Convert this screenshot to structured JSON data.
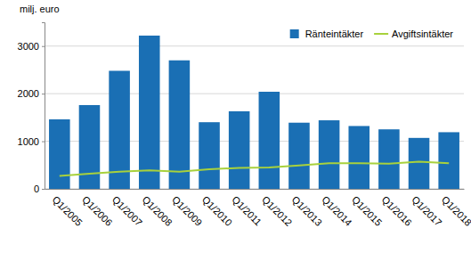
{
  "chart_data": {
    "type": "bar",
    "y_label": "milj. euro",
    "categories": [
      "Q1/2005",
      "Q1/2006",
      "Q1/2007",
      "Q1/2008",
      "Q1/2009",
      "Q1/2010",
      "Q1/2011",
      "Q1/2012",
      "Q1/2013",
      "Q1/2014",
      "Q1/2015",
      "Q1/2016",
      "Q1/2017",
      "Q1/2018"
    ],
    "series": [
      {
        "name": "Ränteintäkter",
        "type": "bar",
        "color": "#1a6fb4",
        "values": [
          1460,
          1760,
          2480,
          3220,
          2700,
          1400,
          1630,
          2040,
          1390,
          1440,
          1320,
          1250,
          1070,
          1190
        ]
      },
      {
        "name": "Avgiftsintäkter",
        "type": "line",
        "color": "#a8d13c",
        "values": [
          270,
          320,
          360,
          390,
          360,
          410,
          440,
          450,
          490,
          540,
          540,
          530,
          570,
          540
        ]
      }
    ],
    "ylim": [
      0,
      3500
    ],
    "yticks": [
      0,
      1000,
      2000,
      3000
    ],
    "grid": true,
    "legend": "top-right"
  }
}
